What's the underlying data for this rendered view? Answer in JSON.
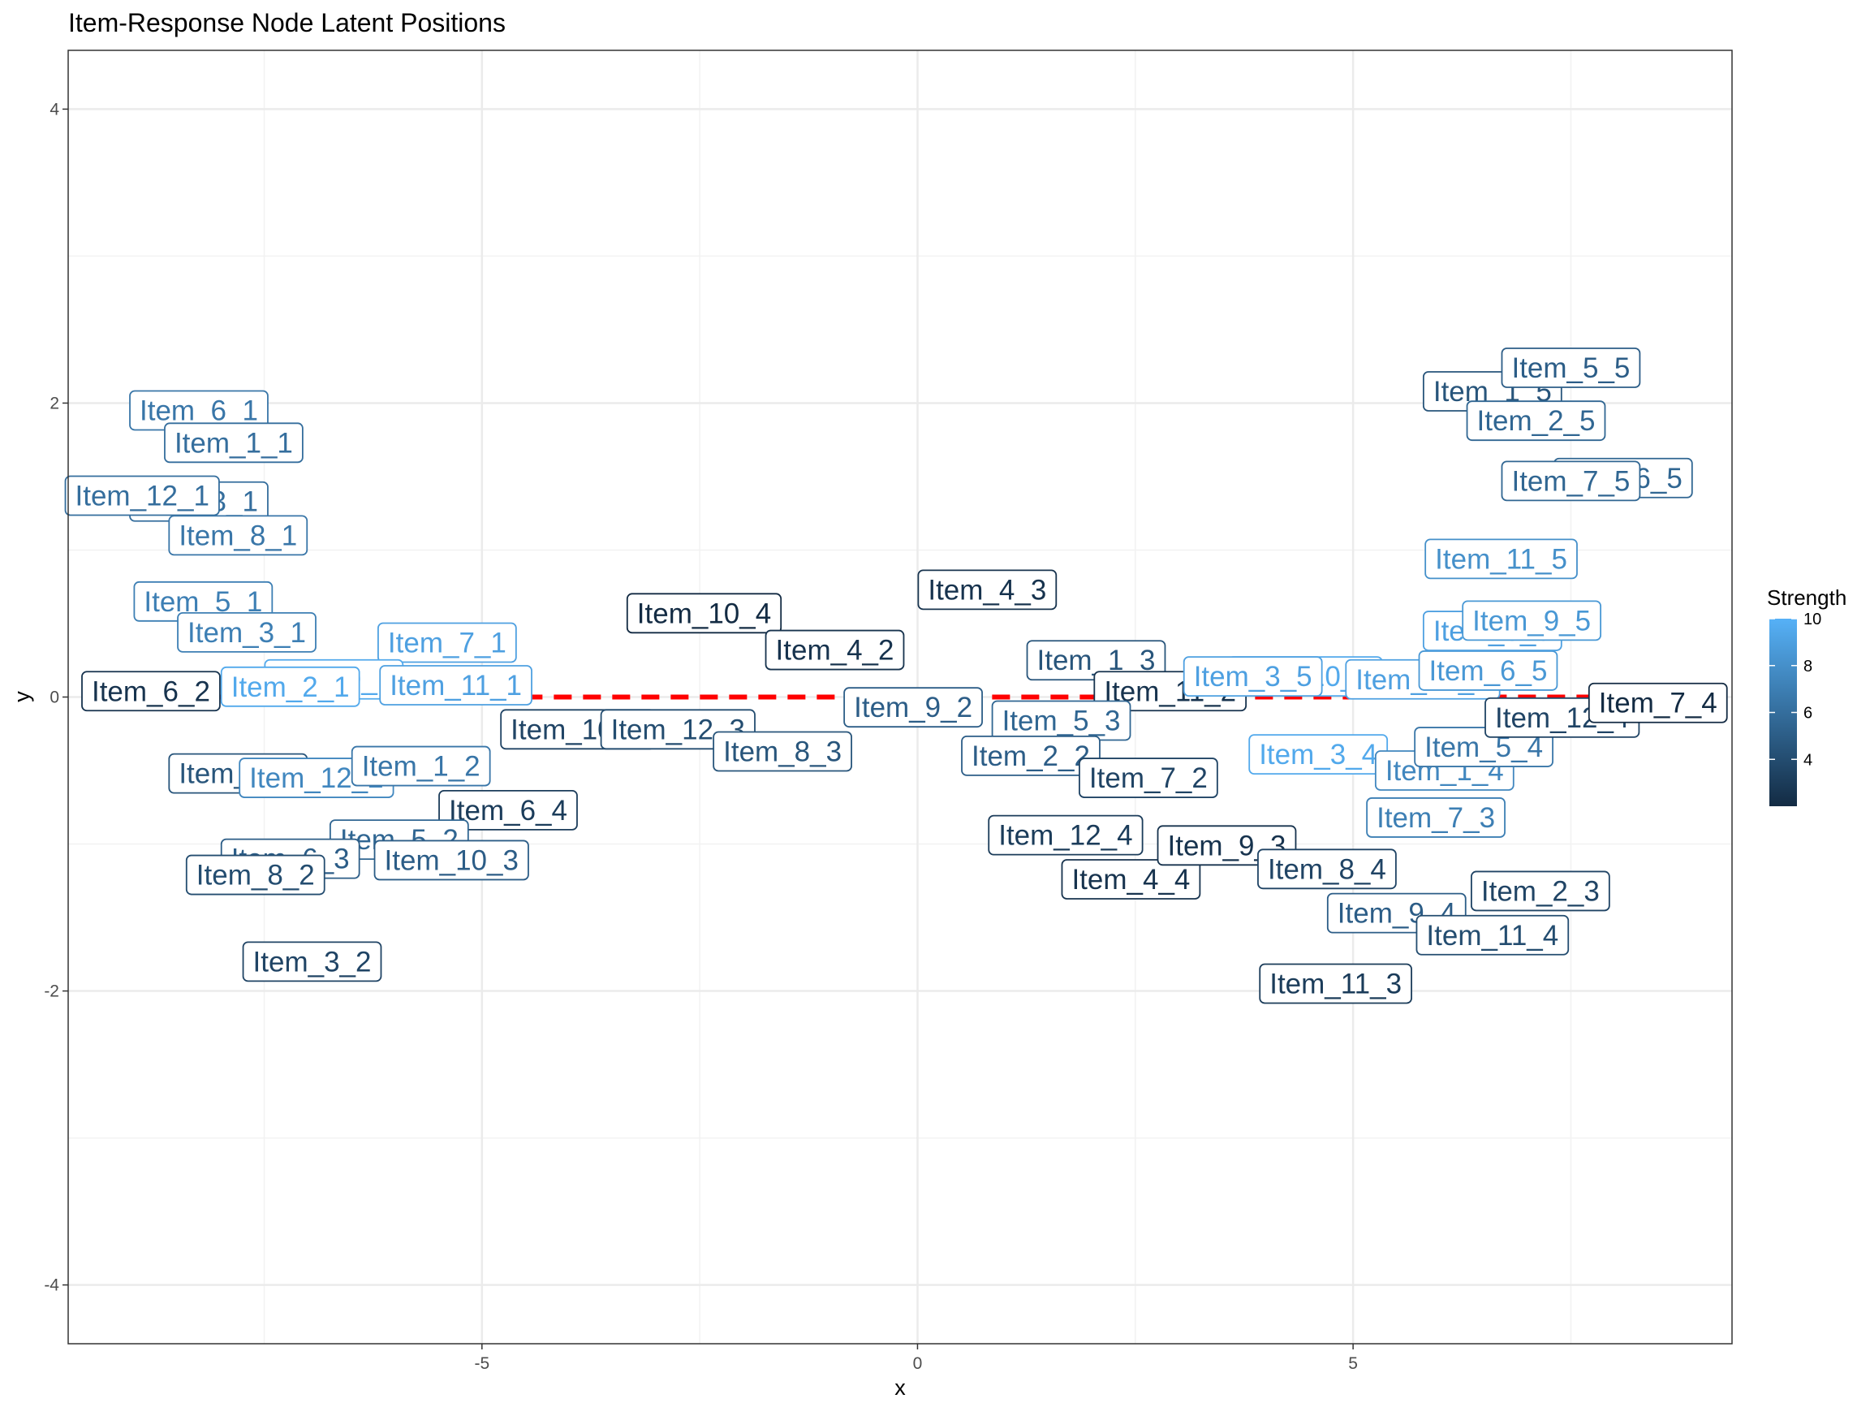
{
  "chart_data": {
    "type": "scatter",
    "title": "Item-Response Node Latent Positions",
    "xlabel": "x",
    "ylabel": "y",
    "xlim": [
      -9.75,
      9.35
    ],
    "ylim": [
      -4.4,
      4.4
    ],
    "x_ticks": [
      -5,
      0,
      5
    ],
    "x_tick_labels": [
      "-5",
      "0",
      "5"
    ],
    "y_ticks": [
      -4,
      -2,
      0,
      2,
      4
    ],
    "y_tick_labels": [
      "-4",
      "-2",
      "0",
      "2",
      "4"
    ],
    "grid": true,
    "reference_line": {
      "y": 0,
      "x_range": [
        -8.2,
        8.1
      ],
      "color": "#ff0000",
      "style": "dashed"
    },
    "legend": {
      "title": "Strength",
      "position": "right",
      "range": [
        2,
        10
      ],
      "ticks": [
        4,
        6,
        8,
        10
      ],
      "tick_labels": [
        "4",
        "6",
        "8",
        "10"
      ],
      "low_color": "#132b43",
      "high_color": "#56b1f7"
    },
    "points": [
      {
        "label": "Item_6_1",
        "x": -8.25,
        "y": 1.95,
        "strength": 6.5
      },
      {
        "label": "Item_1_1",
        "x": -7.85,
        "y": 1.73,
        "strength": 6.0
      },
      {
        "label": "Item_3_1",
        "x": -8.25,
        "y": 1.33,
        "strength": 6.0
      },
      {
        "label": "Item_12_1",
        "x": -8.9,
        "y": 1.37,
        "strength": 6.0
      },
      {
        "label": "Item_8_1",
        "x": -7.8,
        "y": 1.1,
        "strength": 6.5
      },
      {
        "label": "Item_5_1",
        "x": -8.2,
        "y": 0.65,
        "strength": 7.0
      },
      {
        "label": "Item_3_1",
        "x": -7.7,
        "y": 0.44,
        "strength": 7.0
      },
      {
        "label": "Item_7_1",
        "x": -5.4,
        "y": 0.37,
        "strength": 9.0
      },
      {
        "label": "Item_9_1",
        "x": -6.7,
        "y": 0.12,
        "strength": 9.5
      },
      {
        "label": "Item_2_1",
        "x": -7.2,
        "y": 0.07,
        "strength": 9.5
      },
      {
        "label": "Item_11_1",
        "x": -5.3,
        "y": 0.08,
        "strength": 9.0
      },
      {
        "label": "Item_6_2",
        "x": -8.8,
        "y": 0.04,
        "strength": 2.5
      },
      {
        "label": "Item_4_1",
        "x": -7.8,
        "y": -0.52,
        "strength": 4.5
      },
      {
        "label": "Item_12_2",
        "x": -6.9,
        "y": -0.55,
        "strength": 7.5
      },
      {
        "label": "Item_1_2",
        "x": -5.7,
        "y": -0.47,
        "strength": 6.5
      },
      {
        "label": "Item_6_4",
        "x": -4.7,
        "y": -0.77,
        "strength": 3.0
      },
      {
        "label": "Item_5_2",
        "x": -5.95,
        "y": -0.97,
        "strength": 5.5
      },
      {
        "label": "Item_6_3",
        "x": -7.2,
        "y": -1.1,
        "strength": 5.0
      },
      {
        "label": "Item_10_3",
        "x": -5.35,
        "y": -1.11,
        "strength": 5.0
      },
      {
        "label": "Item_8_2",
        "x": -7.6,
        "y": -1.21,
        "strength": 4.0
      },
      {
        "label": "Item_3_2",
        "x": -6.95,
        "y": -1.8,
        "strength": 3.5
      },
      {
        "label": "Item_10_4",
        "x": -2.45,
        "y": 0.57,
        "strength": 2.0
      },
      {
        "label": "Item_4_2",
        "x": -0.95,
        "y": 0.32,
        "strength": 2.5
      },
      {
        "label": "Item_10_2",
        "x": -3.9,
        "y": -0.22,
        "strength": 3.5
      },
      {
        "label": "Item_12_3",
        "x": -2.75,
        "y": -0.22,
        "strength": 4.0
      },
      {
        "label": "Item_8_3",
        "x": -1.55,
        "y": -0.37,
        "strength": 4.5
      },
      {
        "label": "Item_9_2",
        "x": -0.05,
        "y": -0.07,
        "strength": 5.0
      },
      {
        "label": "Item_4_3",
        "x": 0.8,
        "y": 0.73,
        "strength": 2.5
      },
      {
        "label": "Item_1_3",
        "x": 2.05,
        "y": 0.25,
        "strength": 4.5
      },
      {
        "label": "Item_11_2",
        "x": 2.9,
        "y": 0.04,
        "strength": 2.5
      },
      {
        "label": "Item_5_3",
        "x": 1.65,
        "y": -0.16,
        "strength": 5.5
      },
      {
        "label": "Item_2_2",
        "x": 1.3,
        "y": -0.4,
        "strength": 5.0
      },
      {
        "label": "Item_7_2",
        "x": 2.65,
        "y": -0.55,
        "strength": 3.5
      },
      {
        "label": "Item_12_4",
        "x": 1.7,
        "y": -0.94,
        "strength": 3.0
      },
      {
        "label": "Item_4_4",
        "x": 2.45,
        "y": -1.24,
        "strength": 2.5
      },
      {
        "label": "Item_9_3",
        "x": 3.55,
        "y": -1.01,
        "strength": 2.5
      },
      {
        "label": "Item_8_4",
        "x": 4.7,
        "y": -1.17,
        "strength": 3.5
      },
      {
        "label": "Item_10_5",
        "x": 4.45,
        "y": 0.14,
        "strength": 9.5
      },
      {
        "label": "Item_3_5",
        "x": 3.85,
        "y": 0.14,
        "strength": 9.0
      },
      {
        "label": "Item_3_4",
        "x": 4.6,
        "y": -0.39,
        "strength": 9.5
      },
      {
        "label": "Item_12_5",
        "x": 5.8,
        "y": 0.12,
        "strength": 9.0
      },
      {
        "label": "Item_6_5",
        "x": 6.55,
        "y": 0.18,
        "strength": 8.5
      },
      {
        "label": "Item_1_4",
        "x": 6.05,
        "y": -0.5,
        "strength": 7.5
      },
      {
        "label": "Item_5_4",
        "x": 6.5,
        "y": -0.34,
        "strength": 6.5
      },
      {
        "label": "Item_7_3",
        "x": 5.95,
        "y": -0.82,
        "strength": 7.0
      },
      {
        "label": "Item_9_4",
        "x": 5.5,
        "y": -1.47,
        "strength": 5.0
      },
      {
        "label": "Item_11_4",
        "x": 6.6,
        "y": -1.62,
        "strength": 4.0
      },
      {
        "label": "Item_2_3",
        "x": 7.15,
        "y": -1.32,
        "strength": 3.5
      },
      {
        "label": "Item_11_3",
        "x": 4.8,
        "y": -1.95,
        "strength": 3.0
      },
      {
        "label": "Item_8_5",
        "x": 6.6,
        "y": 0.45,
        "strength": 9.0
      },
      {
        "label": "Item_9_5",
        "x": 7.05,
        "y": 0.52,
        "strength": 8.5
      },
      {
        "label": "Item_11_5",
        "x": 6.7,
        "y": 0.94,
        "strength": 8.0
      },
      {
        "label": "Item_1_5",
        "x": 6.6,
        "y": 2.08,
        "strength": 4.5
      },
      {
        "label": "Item_5_5",
        "x": 7.5,
        "y": 2.24,
        "strength": 5.0
      },
      {
        "label": "Item_2_5",
        "x": 7.1,
        "y": 1.88,
        "strength": 5.5
      },
      {
        "label": "Item_6_5",
        "x": 8.1,
        "y": 1.49,
        "strength": 5.5
      },
      {
        "label": "Item_7_5",
        "x": 7.5,
        "y": 1.47,
        "strength": 5.5
      },
      {
        "label": "Item_12_4",
        "x": 7.4,
        "y": -0.14,
        "strength": 3.5
      },
      {
        "label": "Item_7_4",
        "x": 8.5,
        "y": -0.04,
        "strength": 2.0
      }
    ]
  }
}
